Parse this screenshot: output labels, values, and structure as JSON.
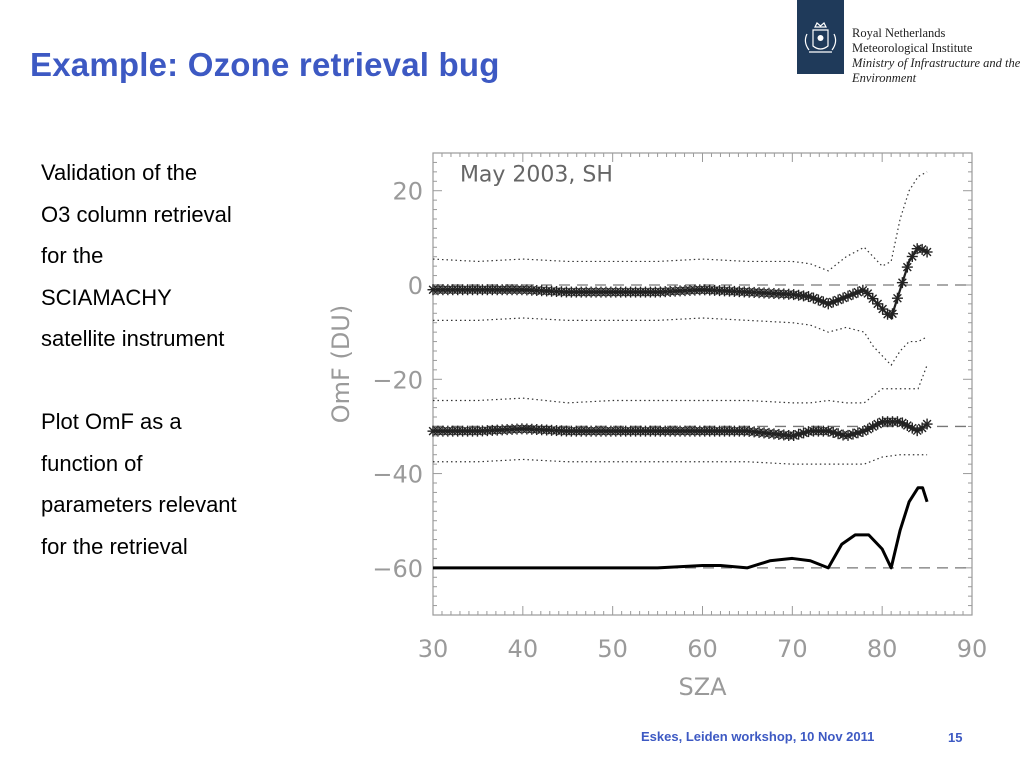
{
  "slide": {
    "title": "Example: Ozone retrieval bug",
    "body_lines_1": [
      "Validation of the",
      "O3 column retrieval",
      "for the",
      "SCIAMACHY",
      "satellite instrument"
    ],
    "body_lines_2": [
      "Plot OmF as a",
      "function of",
      "parameters relevant",
      "for the retrieval"
    ],
    "footer": "Eskes, Leiden workshop, 10 Nov 2011",
    "page_number": "15"
  },
  "logo": {
    "line1": "Royal Netherlands",
    "line2": "Meteorological Institute",
    "line3": "Ministry of Infrastructure and the",
    "line4": "Environment",
    "color": "#1f3a5a"
  },
  "colors": {
    "accent": "#3d59c3"
  },
  "chart_data": {
    "type": "line",
    "title": "May 2003, SH",
    "xlabel": "SZA",
    "ylabel": "OmF (DU)",
    "xlim": [
      30,
      90
    ],
    "ylim": [
      -70,
      28
    ],
    "xticks": [
      30,
      40,
      50,
      60,
      70,
      80,
      90
    ],
    "yticks": [
      20,
      0,
      -20,
      -40,
      -60
    ],
    "ytick_labels": [
      "20",
      "0",
      "−20",
      "−40",
      "−60"
    ],
    "reference_lines": [
      0,
      -30,
      -60
    ],
    "series": [
      {
        "style": "asterisk",
        "x": [
          30,
          35,
          40,
          45,
          50,
          55,
          60,
          65,
          70,
          72,
          74,
          76,
          78,
          79,
          80,
          81,
          82,
          83,
          84,
          85
        ],
        "y": [
          -1,
          -1,
          -1,
          -1.5,
          -1.5,
          -1.5,
          -1,
          -1.5,
          -2,
          -2.5,
          -4,
          -2.5,
          -1,
          -3,
          -5,
          -7,
          -1,
          5,
          8,
          7
        ]
      },
      {
        "style": "dotted",
        "x": [
          30,
          35,
          40,
          45,
          50,
          55,
          60,
          65,
          70,
          72,
          74,
          76,
          78,
          79,
          80,
          81,
          82,
          83,
          84,
          85
        ],
        "y": [
          5.5,
          5,
          5.5,
          5,
          5,
          5,
          5.5,
          5,
          5,
          4.5,
          3,
          6,
          8,
          6,
          4,
          5,
          14,
          20,
          23,
          24
        ]
      },
      {
        "style": "dotted",
        "x": [
          30,
          35,
          40,
          45,
          50,
          55,
          60,
          65,
          70,
          72,
          74,
          76,
          78,
          79,
          80,
          81,
          82,
          83,
          84,
          85
        ],
        "y": [
          -7.5,
          -7.5,
          -7,
          -7.5,
          -7.5,
          -7.5,
          -7,
          -7.5,
          -8,
          -8.5,
          -10,
          -9,
          -10,
          -13,
          -15,
          -17,
          -14,
          -12,
          -12,
          -11
        ]
      },
      {
        "style": "asterisk",
        "x": [
          30,
          35,
          40,
          45,
          50,
          55,
          60,
          65,
          70,
          72,
          74,
          76,
          78,
          80,
          82,
          84,
          85
        ],
        "y": [
          -31,
          -31,
          -30.5,
          -31,
          -31,
          -31,
          -31,
          -31,
          -32,
          -31,
          -31,
          -32,
          -31,
          -29,
          -29,
          -31,
          -29.5
        ]
      },
      {
        "style": "dotted",
        "x": [
          30,
          35,
          40,
          45,
          50,
          55,
          60,
          65,
          70,
          72,
          74,
          76,
          78,
          80,
          82,
          84,
          85
        ],
        "y": [
          -24.5,
          -24.5,
          -24,
          -25,
          -24.5,
          -24.5,
          -24.5,
          -24.5,
          -25,
          -25,
          -24.5,
          -25,
          -25,
          -22,
          -22,
          -22,
          -17
        ]
      },
      {
        "style": "dotted",
        "x": [
          30,
          35,
          40,
          45,
          50,
          55,
          60,
          65,
          70,
          72,
          74,
          76,
          78,
          80,
          82,
          84,
          85
        ],
        "y": [
          -37.5,
          -37.5,
          -37,
          -37.5,
          -37.5,
          -37.5,
          -37.5,
          -37.5,
          -38,
          -38,
          -38,
          -38,
          -38,
          -36.5,
          -36,
          -36,
          -36
        ]
      },
      {
        "style": "solid",
        "x": [
          30,
          40,
          50,
          55,
          60,
          62,
          65,
          67.5,
          70,
          72,
          74,
          75.5,
          77,
          78.5,
          80,
          81,
          82,
          83,
          84,
          84.5,
          85
        ],
        "y": [
          -60,
          -60,
          -60,
          -60,
          -59.5,
          -59.5,
          -60,
          -58.5,
          -58,
          -58.5,
          -60,
          -55,
          -53,
          -53,
          -56,
          -60,
          -52,
          -46,
          -43,
          -43,
          -46
        ]
      }
    ]
  }
}
